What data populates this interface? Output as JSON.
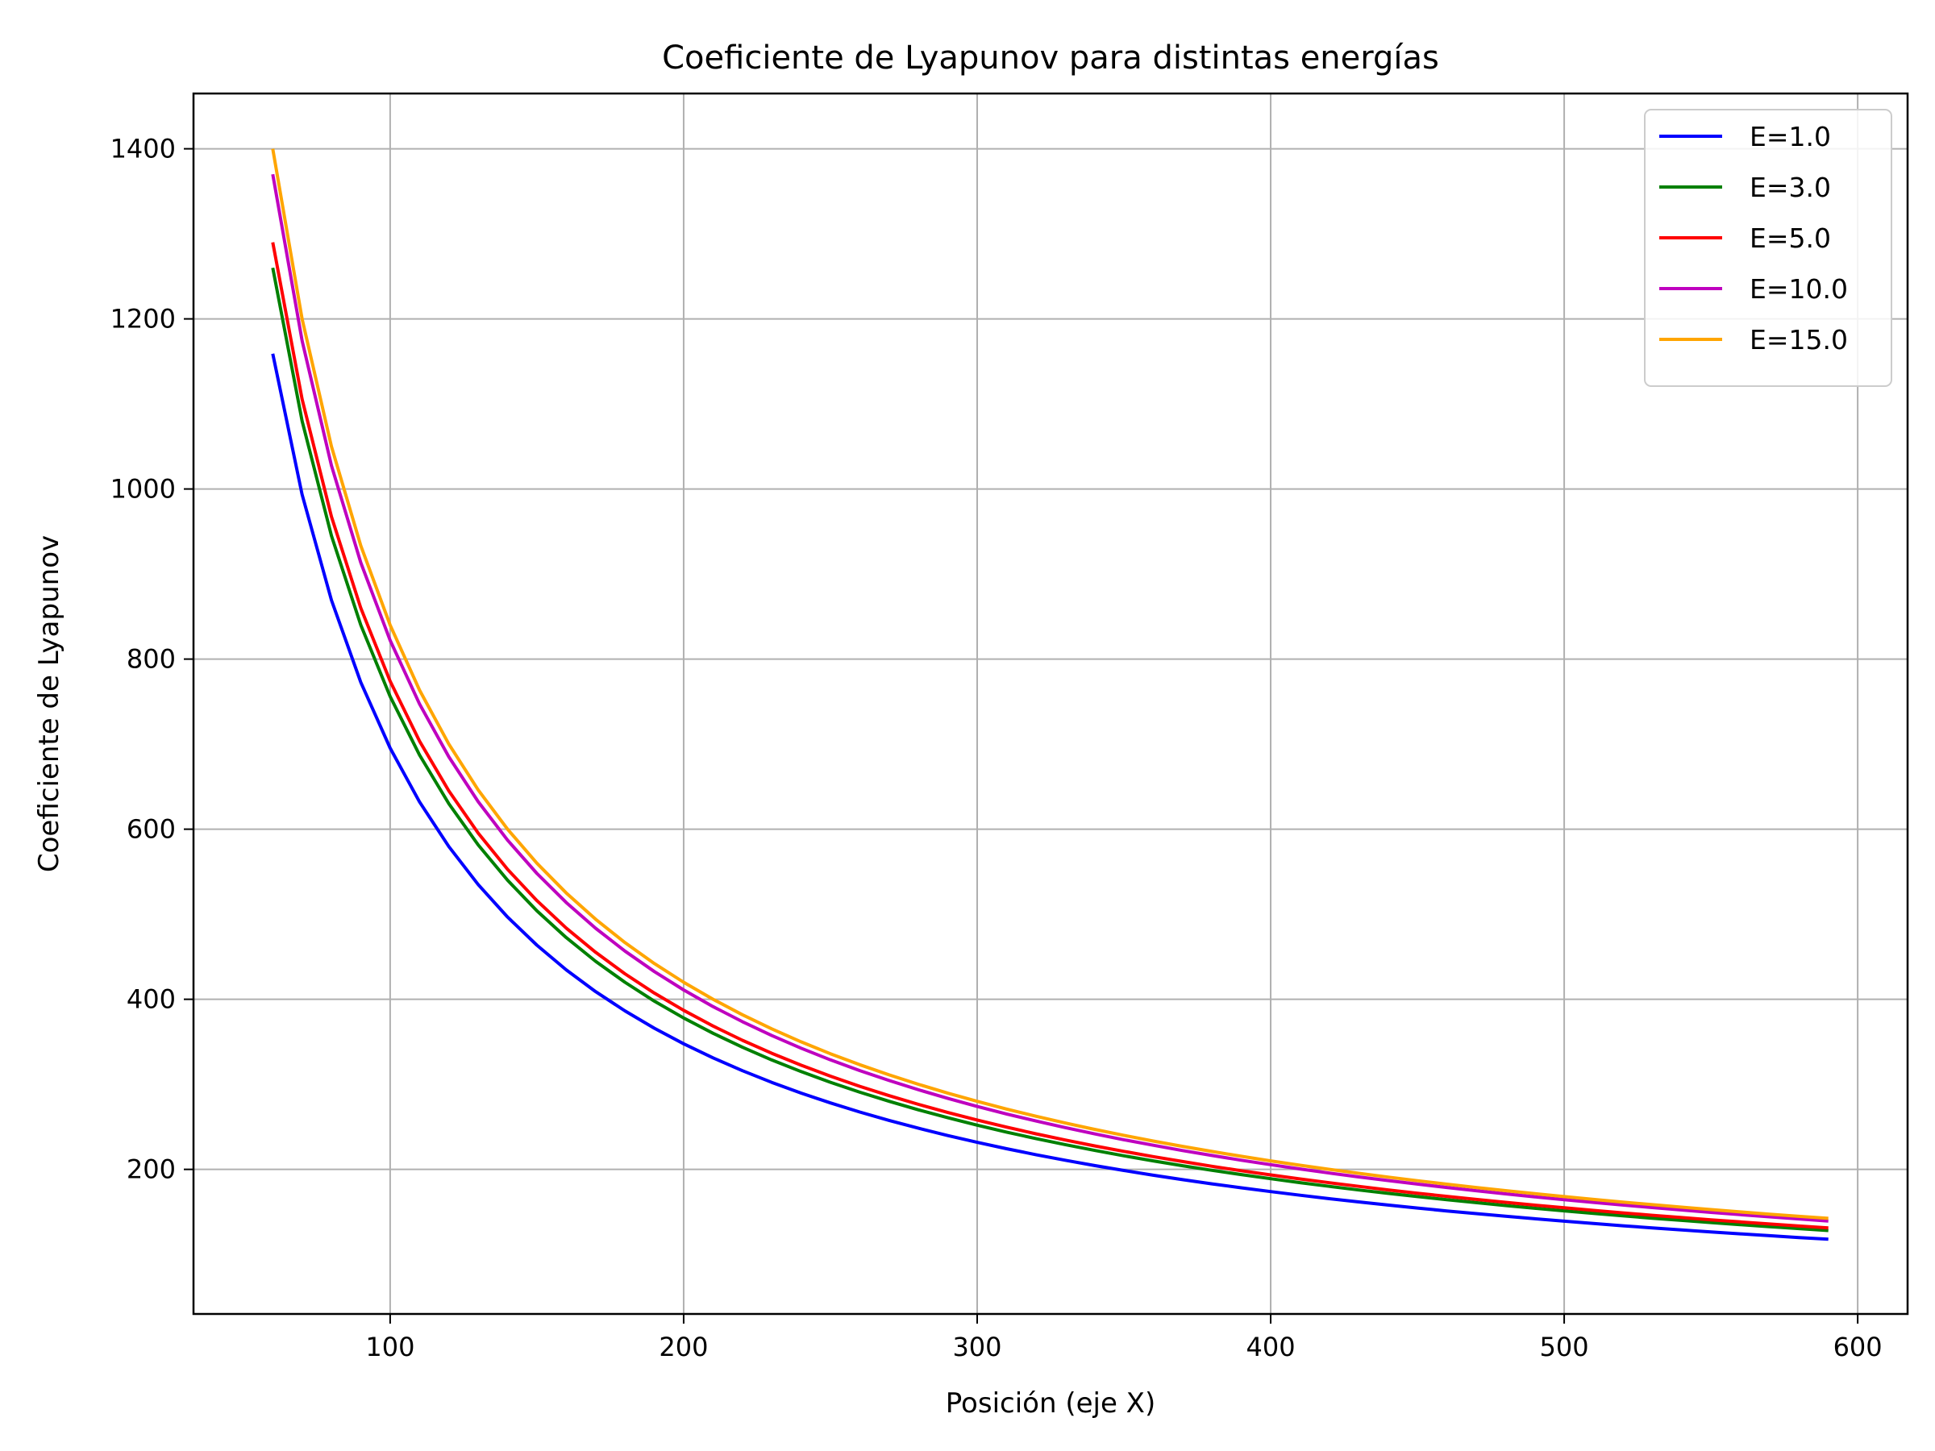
{
  "chart_data": {
    "type": "line",
    "title": "Coeficiente de Lyapunov para distintas energías",
    "xlabel": "Posición (eje X)",
    "ylabel": "Coeficiente de Lyapunov",
    "xlim": [
      33,
      617
    ],
    "ylim": [
      30,
      1465
    ],
    "xticks": [
      100,
      200,
      300,
      400,
      500,
      600
    ],
    "yticks": [
      200,
      400,
      600,
      800,
      1000,
      1200,
      1400
    ],
    "grid": true,
    "legend_position": "top-right",
    "x": [
      60,
      70,
      80,
      90,
      100,
      110,
      120,
      130,
      140,
      150,
      160,
      170,
      180,
      190,
      200,
      210,
      220,
      230,
      240,
      250,
      260,
      270,
      280,
      290,
      300,
      310,
      320,
      330,
      340,
      350,
      360,
      370,
      380,
      390,
      400,
      410,
      420,
      430,
      440,
      450,
      460,
      470,
      480,
      490,
      500,
      510,
      520,
      530,
      540,
      550,
      560,
      570,
      580,
      590
    ],
    "series": [
      {
        "name": "E=1.0",
        "color": "#0000ff",
        "a": 69540
      },
      {
        "name": "E=3.0",
        "color": "#008000",
        "a": 75600
      },
      {
        "name": "E=5.0",
        "color": "#ff0000",
        "a": 77400
      },
      {
        "name": "E=10.0",
        "color": "#bf00bf",
        "a": 82200
      },
      {
        "name": "E=15.0",
        "color": "#ffa500",
        "a": 84000
      }
    ],
    "series_formula": "y = a / x"
  }
}
